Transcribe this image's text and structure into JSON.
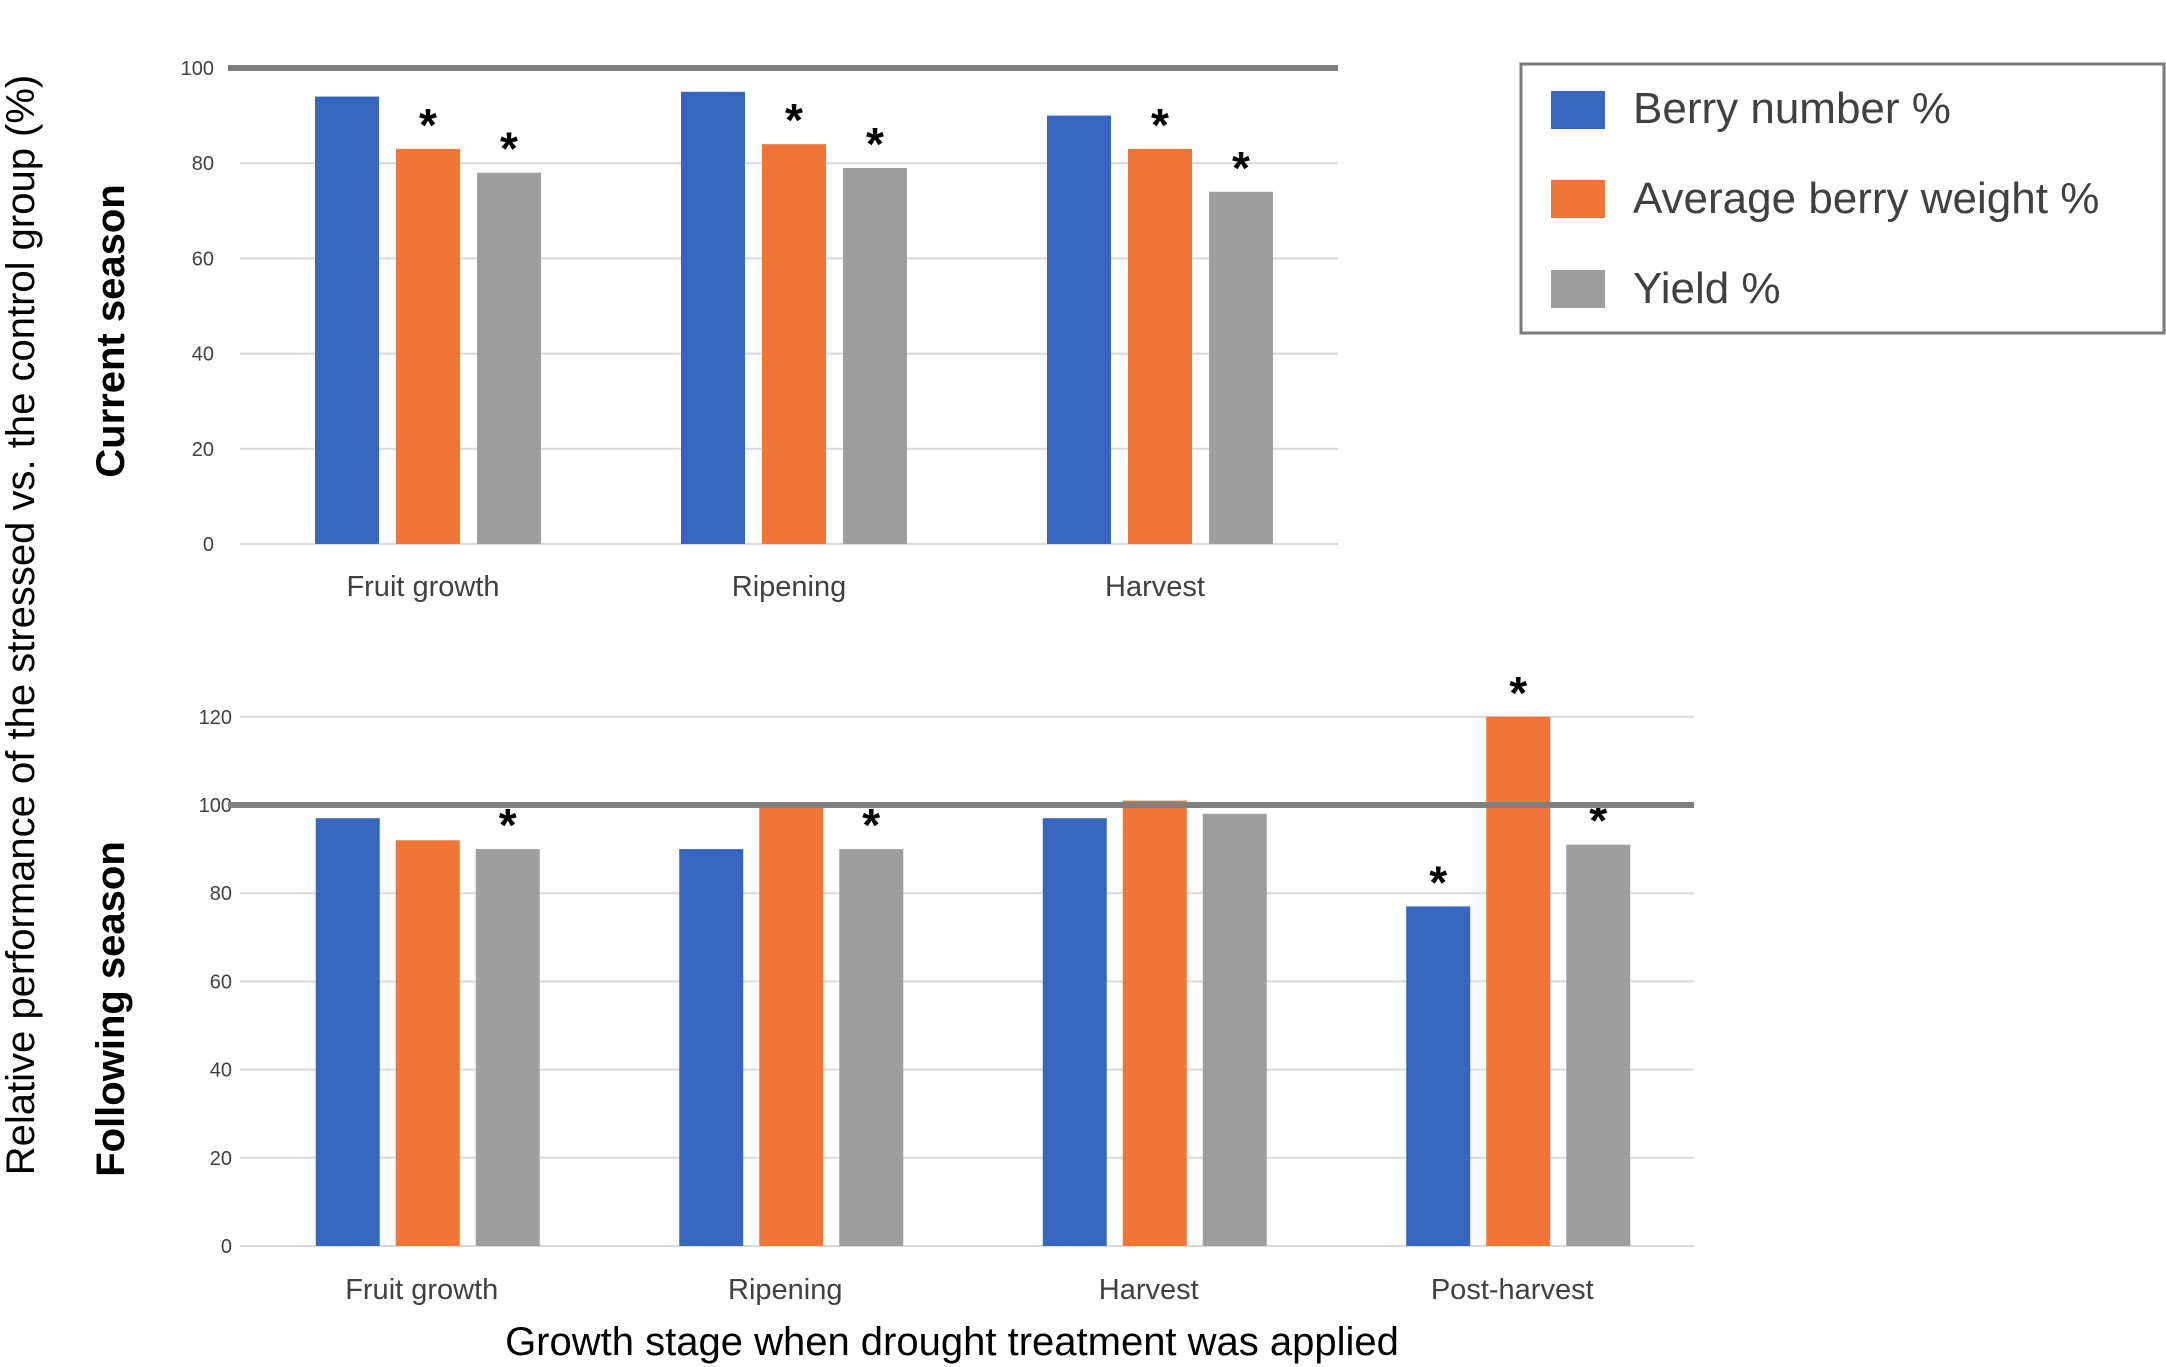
{
  "y_axis_label": "Relative performance of the stressed vs. the control group (%)",
  "x_axis_label": "Growth stage when drought treatment was applied",
  "legend": [
    {
      "name": "Berry number %",
      "color": "#3766BE"
    },
    {
      "name": "Average berry weight %",
      "color": "#F07637"
    },
    {
      "name": "Yield %",
      "color": "#9E9E9E"
    }
  ],
  "chart_data": [
    {
      "type": "bar",
      "title": "Current season",
      "categories": [
        "Fruit growth",
        "Ripening",
        "Harvest"
      ],
      "ylim": [
        0,
        100
      ],
      "yticks": [
        0,
        20,
        40,
        60,
        80,
        100
      ],
      "reference_line": 100,
      "series": [
        {
          "name": "Berry number %",
          "values": [
            94,
            95,
            90
          ],
          "significant": [
            false,
            false,
            false
          ]
        },
        {
          "name": "Average berry weight %",
          "values": [
            83,
            84,
            83
          ],
          "significant": [
            true,
            true,
            true
          ]
        },
        {
          "name": "Yield %",
          "values": [
            78,
            79,
            74
          ],
          "significant": [
            true,
            true,
            true
          ]
        }
      ],
      "significance_marker": "*"
    },
    {
      "type": "bar",
      "title": "Following season",
      "categories": [
        "Fruit growth",
        "Ripening",
        "Harvest",
        "Post-harvest"
      ],
      "ylim": [
        0,
        120
      ],
      "yticks": [
        0,
        20,
        40,
        60,
        80,
        100,
        120
      ],
      "reference_line": 100,
      "series": [
        {
          "name": "Berry number %",
          "values": [
            97,
            90,
            97,
            77
          ],
          "significant": [
            false,
            false,
            false,
            true
          ]
        },
        {
          "name": "Average berry weight %",
          "values": [
            92,
            100,
            101,
            120
          ],
          "significant": [
            false,
            false,
            false,
            true
          ]
        },
        {
          "name": "Yield %",
          "values": [
            90,
            90,
            98,
            91
          ],
          "significant": [
            true,
            true,
            false,
            true
          ]
        }
      ],
      "significance_marker": "*"
    }
  ]
}
